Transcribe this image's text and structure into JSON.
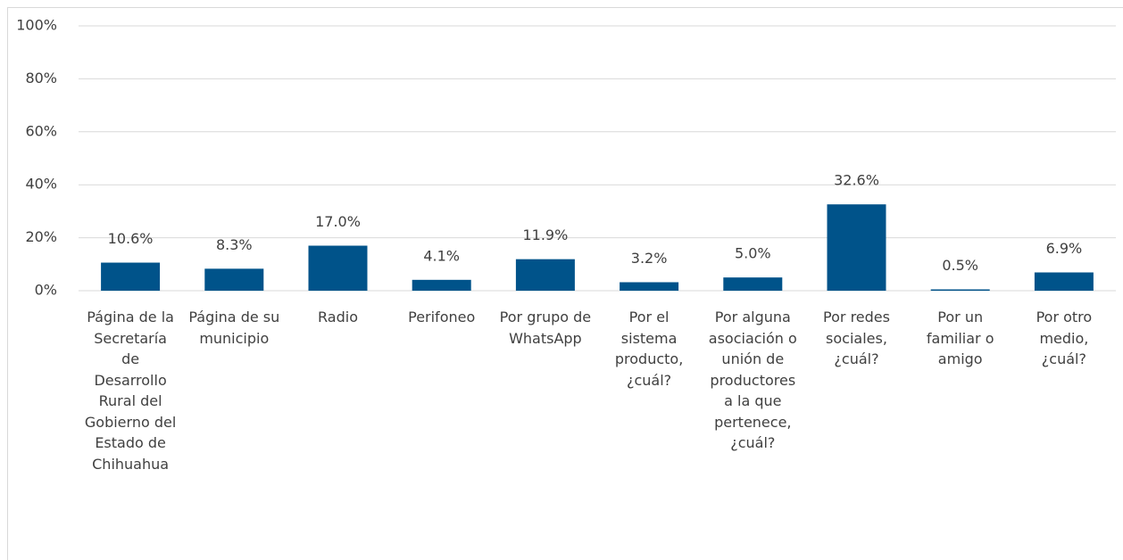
{
  "chart_data": {
    "type": "bar",
    "categories": [
      "Página de la Secretaría de Desarrollo Rural del Gobierno del Estado de Chihuahua",
      "Página de su municipio",
      "Radio",
      "Perifoneo",
      "Por grupo de WhatsApp",
      "Por el sistema producto, ¿cuál?",
      "Por alguna asociación o unión de productores a la que pertenece, ¿cuál?",
      "Por redes sociales, ¿cuál?",
      "Por un familiar o amigo",
      "Por otro medio, ¿cuál?"
    ],
    "values": [
      10.6,
      8.3,
      17.0,
      4.1,
      11.9,
      3.2,
      5.0,
      32.6,
      0.5,
      6.9
    ],
    "value_labels": [
      "10.6%",
      "8.3%",
      "17.0%",
      "4.1%",
      "11.9%",
      "3.2%",
      "5.0%",
      "32.6%",
      "0.5%",
      "6.9%"
    ],
    "color": "#00538a",
    "ylim": [
      0,
      100
    ],
    "yticks": [
      {
        "value": 0,
        "label": "0%"
      },
      {
        "value": 20,
        "label": "20%"
      },
      {
        "value": 40,
        "label": "40%"
      },
      {
        "value": 60,
        "label": "60%"
      },
      {
        "value": 80,
        "label": "80%"
      },
      {
        "value": 100,
        "label": "100%"
      }
    ],
    "grid": true
  }
}
